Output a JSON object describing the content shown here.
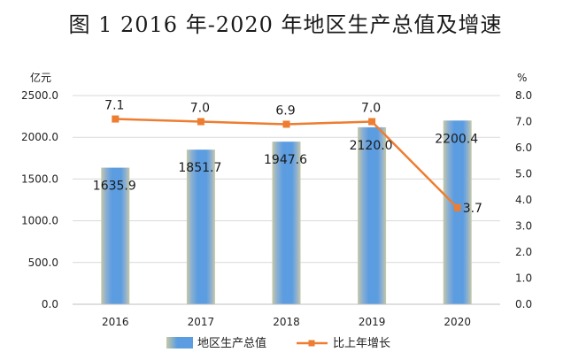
{
  "title": "图 1 2016 年-2020 年地区生产总值及增速",
  "chart_data": {
    "type": "bar",
    "categories": [
      "2016",
      "2017",
      "2018",
      "2019",
      "2020"
    ],
    "series": [
      {
        "name": "地区生产总值",
        "type": "bar",
        "axis": "left",
        "values": [
          1635.9,
          1851.7,
          1947.6,
          2120.0,
          2200.4
        ],
        "labels": [
          "1635.9",
          "1851.7",
          "1947.6",
          "2120.0",
          "2200.4"
        ],
        "color": "#5b9bd5"
      },
      {
        "name": "比上年增长",
        "type": "line",
        "axis": "right",
        "values": [
          7.1,
          7.0,
          6.9,
          7.0,
          3.7
        ],
        "labels": [
          "7.1",
          "7.0",
          "6.9",
          "7.0",
          "3.7"
        ],
        "color": "#ed7d31"
      }
    ],
    "y_left": {
      "unit": "亿元",
      "ylim": [
        0,
        2500
      ],
      "ticks": [
        "0.0",
        "500.0",
        "1000.0",
        "1500.0",
        "2000.0",
        "2500.0"
      ]
    },
    "y_right": {
      "unit": "%",
      "ylim": [
        0,
        8
      ],
      "ticks": [
        "0.0",
        "1.0",
        "2.0",
        "3.0",
        "4.0",
        "5.0",
        "6.0",
        "7.0",
        "8.0"
      ]
    },
    "grid": true,
    "legend_position": "bottom"
  }
}
